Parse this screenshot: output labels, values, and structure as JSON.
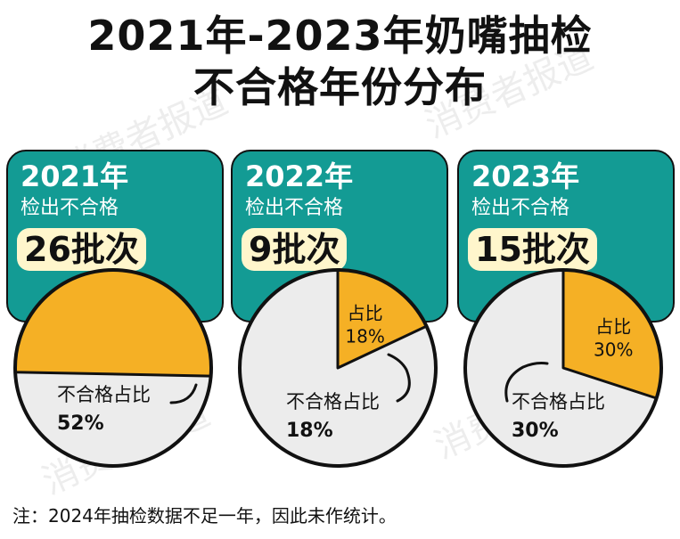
{
  "title_line1": "2021年-2023年奶嘴抽检",
  "title_line2": "不合格年份分布",
  "watermark": "消费者报道",
  "note": "注：2024年抽检数据不足一年，因此未作统计。",
  "colors": {
    "teal": "#139b94",
    "orange": "#f5b025",
    "gray": "#ececec",
    "count_bg": "#fff6cc",
    "outline": "#111111"
  },
  "panels": [
    {
      "year": "2021年",
      "sub": "检出不合格",
      "count": "26批次",
      "slice_label_line1": "",
      "slice_label_line2": "",
      "rest_label_line1": "不合格占比",
      "rest_label_line2": "52%"
    },
    {
      "year": "2022年",
      "sub": "检出不合格",
      "count": "9批次",
      "slice_label_line1": "占比",
      "slice_label_line2": "18%",
      "rest_label_line1": "不合格占比",
      "rest_label_line2": "18%"
    },
    {
      "year": "2023年",
      "sub": "检出不合格",
      "count": "15批次",
      "slice_label_line1": "占比",
      "slice_label_line2": "30%",
      "rest_label_line1": "不合格占比",
      "rest_label_line2": "30%"
    }
  ],
  "chart_data": [
    {
      "type": "pie",
      "title": "2021年",
      "categories": [
        "2021年"
      ],
      "values": [
        52
      ]
    },
    {
      "type": "pie",
      "title": "2022年",
      "categories": [
        "2022年"
      ],
      "values": [
        18
      ]
    },
    {
      "type": "pie",
      "title": "2023年",
      "categories": [
        "2023年"
      ],
      "values": [
        30
      ]
    }
  ]
}
